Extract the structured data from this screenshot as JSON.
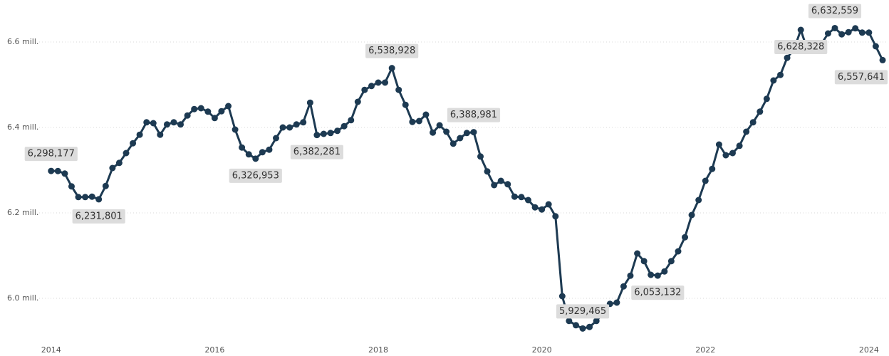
{
  "chart_data": {
    "type": "line",
    "color": "#1d3a52",
    "grid": true,
    "xlim": [
      2013.854,
      2024.219
    ],
    "xticks": [
      2014,
      2016,
      2018,
      2020,
      2022,
      2024
    ],
    "ylim": [
      5915000,
      6665000
    ],
    "yticks": [
      {
        "value": 6000000,
        "label": "6.0 mill."
      },
      {
        "value": 6200000,
        "label": "6.2 mill."
      },
      {
        "value": 6400000,
        "label": "6.4 mill."
      },
      {
        "value": 6600000,
        "label": "6.6 mill."
      }
    ],
    "x": [
      2014,
      2014.083,
      2014.167,
      2014.25,
      2014.333,
      2014.417,
      2014.5,
      2014.583,
      2014.667,
      2014.75,
      2014.833,
      2014.917,
      2015,
      2015.083,
      2015.167,
      2015.25,
      2015.333,
      2015.417,
      2015.5,
      2015.583,
      2015.667,
      2015.75,
      2015.833,
      2015.917,
      2016,
      2016.083,
      2016.167,
      2016.25,
      2016.333,
      2016.417,
      2016.5,
      2016.583,
      2016.667,
      2016.75,
      2016.833,
      2016.917,
      2017,
      2017.083,
      2017.167,
      2017.25,
      2017.333,
      2017.417,
      2017.5,
      2017.583,
      2017.667,
      2017.75,
      2017.833,
      2017.917,
      2018,
      2018.083,
      2018.167,
      2018.25,
      2018.333,
      2018.417,
      2018.5,
      2018.583,
      2018.667,
      2018.75,
      2018.833,
      2018.917,
      2019,
      2019.083,
      2019.167,
      2019.25,
      2019.333,
      2019.417,
      2019.5,
      2019.583,
      2019.667,
      2019.75,
      2019.833,
      2019.917,
      2020,
      2020.083,
      2020.167,
      2020.25,
      2020.333,
      2020.417,
      2020.5,
      2020.583,
      2020.667,
      2020.75,
      2020.833,
      2020.917,
      2021,
      2021.083,
      2021.167,
      2021.25,
      2021.333,
      2021.417,
      2021.5,
      2021.583,
      2021.667,
      2021.75,
      2021.833,
      2021.917,
      2022,
      2022.083,
      2022.167,
      2022.25,
      2022.333,
      2022.417,
      2022.5,
      2022.583,
      2022.667,
      2022.75,
      2022.833,
      2022.917,
      2023,
      2023.083,
      2023.167,
      2023.25,
      2023.333,
      2023.417,
      2023.5,
      2023.583,
      2023.667,
      2023.75,
      2023.833,
      2023.917,
      2024,
      2024.083,
      2024.167
    ],
    "values": [
      6298177,
      6298000,
      6292000,
      6262000,
      6237000,
      6237000,
      6238000,
      6231801,
      6263000,
      6305000,
      6317000,
      6340000,
      6363000,
      6383000,
      6412000,
      6410000,
      6383000,
      6407000,
      6412000,
      6407000,
      6428000,
      6443000,
      6445000,
      6437000,
      6422000,
      6438000,
      6450000,
      6395000,
      6353000,
      6337000,
      6326953,
      6342000,
      6348000,
      6375000,
      6400000,
      6400000,
      6407000,
      6412000,
      6458000,
      6382281,
      6385000,
      6387000,
      6392000,
      6403000,
      6417000,
      6460000,
      6488000,
      6497000,
      6505000,
      6505000,
      6538928,
      6488000,
      6453000,
      6413000,
      6415000,
      6430000,
      6388000,
      6405000,
      6390000,
      6362000,
      6375000,
      6387000,
      6388981,
      6332000,
      6297000,
      6265000,
      6275000,
      6267000,
      6238000,
      6237000,
      6230000,
      6213000,
      6208000,
      6220000,
      6192000,
      6005000,
      5947000,
      5937000,
      5929465,
      5933000,
      5947000,
      5965000,
      5987000,
      5990000,
      6028000,
      6053000,
      6105000,
      6087000,
      6055000,
      6053132,
      6063000,
      6087000,
      6110000,
      6143000,
      6195000,
      6230000,
      6275000,
      6303000,
      6360000,
      6335000,
      6340000,
      6357000,
      6390000,
      6412000,
      6437000,
      6467000,
      6510000,
      6523000,
      6563000,
      6583000,
      6628328,
      6580000,
      6587000,
      6595000,
      6620000,
      6632559,
      6618000,
      6623000,
      6632000,
      6622000,
      6622000,
      6590000,
      6557641
    ],
    "value_labels": [
      "6,298,177",
      null,
      null,
      null,
      null,
      null,
      null,
      "6,231,801",
      null,
      null,
      null,
      null,
      null,
      null,
      null,
      null,
      null,
      null,
      null,
      null,
      null,
      null,
      null,
      null,
      null,
      null,
      null,
      null,
      null,
      null,
      "6,326,953",
      null,
      null,
      null,
      null,
      null,
      null,
      null,
      null,
      "6,382,281",
      null,
      null,
      null,
      null,
      null,
      null,
      null,
      null,
      null,
      null,
      "6,538,928",
      null,
      null,
      null,
      null,
      null,
      null,
      null,
      null,
      null,
      null,
      null,
      "6,388,981",
      null,
      null,
      null,
      null,
      null,
      null,
      null,
      null,
      null,
      null,
      null,
      null,
      null,
      null,
      null,
      "5,929,465",
      null,
      null,
      null,
      null,
      null,
      null,
      null,
      null,
      null,
      null,
      "6,053,132",
      null,
      null,
      null,
      null,
      null,
      null,
      null,
      null,
      null,
      null,
      null,
      null,
      null,
      null,
      null,
      null,
      null,
      null,
      null,
      null,
      "6,628,328",
      null,
      null,
      null,
      null,
      "6,632,559",
      null,
      null,
      null,
      null,
      null,
      null,
      "6,557,641"
    ]
  }
}
